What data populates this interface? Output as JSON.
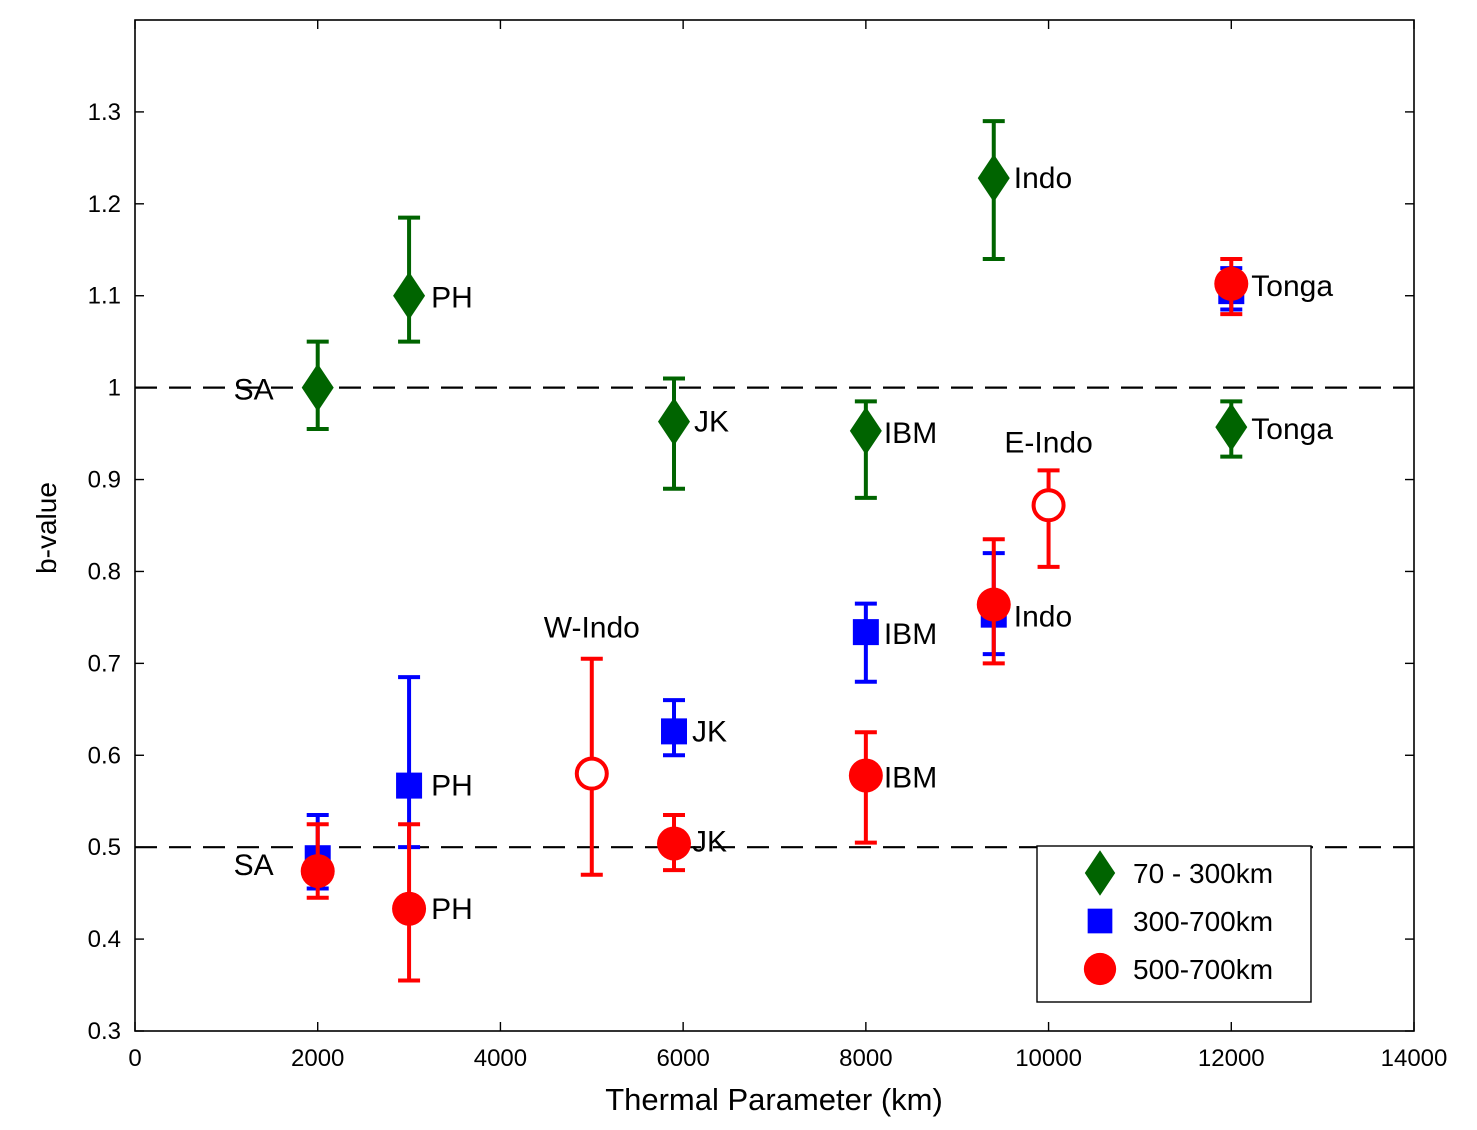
{
  "chart_data": {
    "type": "scatter",
    "xlabel": "Thermal Parameter (km)",
    "ylabel": "b-value",
    "xlim": [
      0,
      14000
    ],
    "ylim": [
      0.3,
      1.4
    ],
    "x_ticks": [
      0,
      2000,
      4000,
      6000,
      8000,
      10000,
      12000,
      14000
    ],
    "x_tick_labels": [
      "0",
      "2000",
      "4000",
      "6000",
      "8000",
      "10000",
      "12000",
      "14000"
    ],
    "y_ticks": [
      0.3,
      0.4,
      0.5,
      0.6,
      0.7,
      0.8,
      0.9,
      1.0,
      1.1,
      1.2,
      1.3
    ],
    "y_tick_labels": [
      "0.3",
      "0.4",
      "0.5",
      "0.6",
      "0.7",
      "0.8",
      "0.9",
      "1",
      "1.1",
      "1.2",
      "1.3"
    ],
    "grid": false,
    "reference_lines": [
      1.0,
      0.5
    ],
    "legend_position": "bottom-right",
    "series": [
      {
        "name": "70 - 300km",
        "marker": "diamond",
        "color": "#006400",
        "points": [
          {
            "label": "SA",
            "x": 2000,
            "y": 1.0,
            "err_low": 0.955,
            "err_high": 1.05
          },
          {
            "label": "PH",
            "x": 3000,
            "y": 1.1,
            "err_low": 1.05,
            "err_high": 1.185
          },
          {
            "label": "JK",
            "x": 5900,
            "y": 0.963,
            "err_low": 0.89,
            "err_high": 1.01
          },
          {
            "label": "IBM",
            "x": 8000,
            "y": 0.953,
            "err_low": 0.88,
            "err_high": 0.985
          },
          {
            "label": "Indo",
            "x": 9400,
            "y": 1.228,
            "err_low": 1.14,
            "err_high": 1.29
          },
          {
            "label": "Tonga",
            "x": 12000,
            "y": 0.957,
            "err_low": 0.925,
            "err_high": 0.985
          }
        ]
      },
      {
        "name": "300-700km",
        "marker": "square",
        "color": "#0000FF",
        "points": [
          {
            "label": "SA",
            "x": 2000,
            "y": 0.488,
            "err_low": 0.455,
            "err_high": 0.535
          },
          {
            "label": "PH",
            "x": 3000,
            "y": 0.567,
            "err_low": 0.5,
            "err_high": 0.685
          },
          {
            "label": "JK",
            "x": 5900,
            "y": 0.626,
            "err_low": 0.6,
            "err_high": 0.66
          },
          {
            "label": "IBM",
            "x": 8000,
            "y": 0.734,
            "err_low": 0.68,
            "err_high": 0.765
          },
          {
            "label": "Indo",
            "x": 9400,
            "y": 0.753,
            "err_low": 0.71,
            "err_high": 0.82
          },
          {
            "label": "Tonga",
            "x": 12000,
            "y": 1.105,
            "err_low": 1.085,
            "err_high": 1.13
          }
        ]
      },
      {
        "name": "500-700km",
        "marker": "circle",
        "color": "#FF0000",
        "points": [
          {
            "label": "SA",
            "x": 2000,
            "y": 0.474,
            "err_low": 0.445,
            "err_high": 0.525
          },
          {
            "label": "PH",
            "x": 3000,
            "y": 0.433,
            "err_low": 0.355,
            "err_high": 0.525
          },
          {
            "label": "JK",
            "x": 5900,
            "y": 0.504,
            "err_low": 0.475,
            "err_high": 0.535
          },
          {
            "label": "IBM",
            "x": 8000,
            "y": 0.578,
            "err_low": 0.505,
            "err_high": 0.625
          },
          {
            "label": "Indo",
            "x": 9400,
            "y": 0.764,
            "err_low": 0.7,
            "err_high": 0.835
          },
          {
            "label": "Tonga",
            "x": 12000,
            "y": 1.113,
            "err_low": 1.08,
            "err_high": 1.14
          }
        ]
      },
      {
        "marker": "open-circle",
        "color": "#FF0000",
        "points": [
          {
            "label": "W-Indo",
            "x": 5000,
            "y": 0.58,
            "err_low": 0.47,
            "err_high": 0.705
          },
          {
            "label": "E-Indo",
            "x": 10000,
            "y": 0.872,
            "err_low": 0.805,
            "err_high": 0.91
          }
        ]
      }
    ]
  }
}
